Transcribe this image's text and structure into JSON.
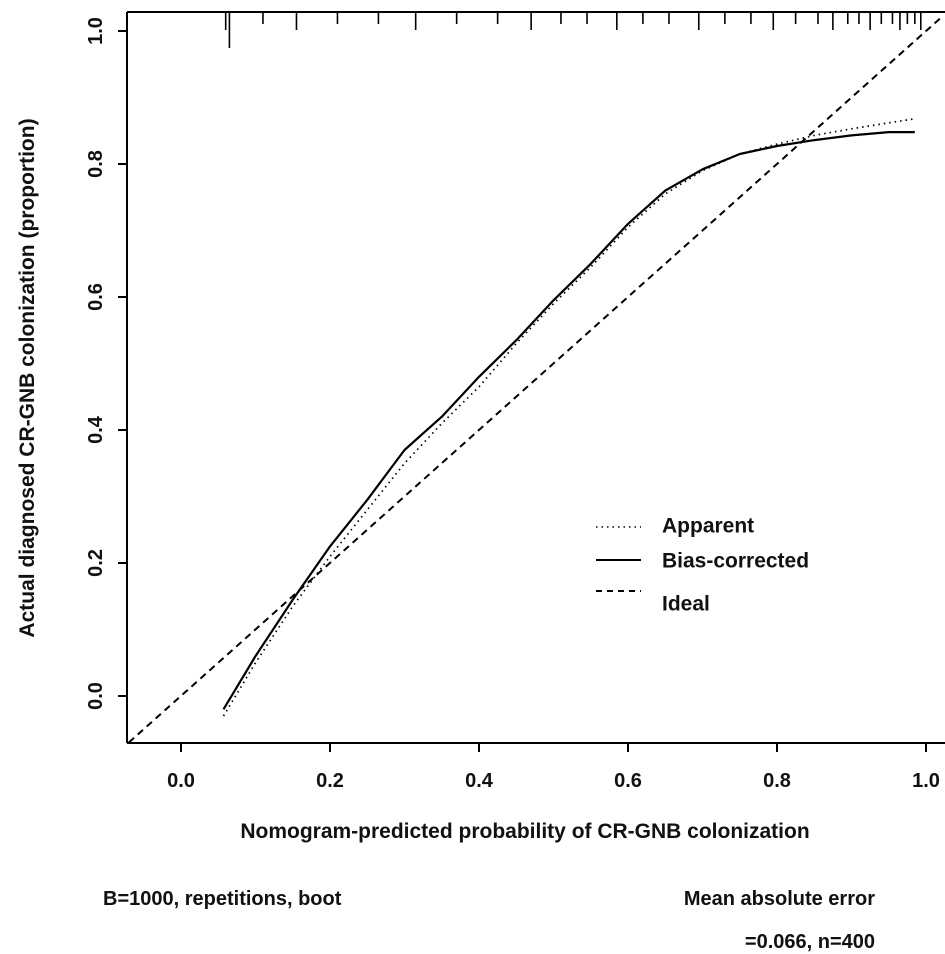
{
  "chart_data": {
    "type": "line",
    "xlabel": "Nomogram-predicted probability of CR-GNB colonization",
    "ylabel": "Actual diagnosed CR-GNB colonization (proportion)",
    "xlim": [
      -0.07,
      1.02
    ],
    "ylim": [
      -0.07,
      1.03
    ],
    "x_ticks": [
      "0.0",
      "0.2",
      "0.4",
      "0.6",
      "0.8",
      "1.0"
    ],
    "y_ticks": [
      "0.0",
      "0.2",
      "0.4",
      "0.6",
      "0.8",
      "1.0"
    ],
    "grid": false,
    "legend_position": "right",
    "series": [
      {
        "name": "Apparent",
        "style": "dotted",
        "x": [
          0.057,
          0.1,
          0.15,
          0.2,
          0.25,
          0.3,
          0.35,
          0.4,
          0.45,
          0.5,
          0.55,
          0.6,
          0.65,
          0.7,
          0.75,
          0.8,
          0.85,
          0.9,
          0.95,
          0.985
        ],
        "y": [
          -0.03,
          0.05,
          0.135,
          0.21,
          0.28,
          0.35,
          0.41,
          0.465,
          0.53,
          0.59,
          0.645,
          0.705,
          0.755,
          0.79,
          0.815,
          0.83,
          0.843,
          0.853,
          0.862,
          0.868
        ]
      },
      {
        "name": "Bias-corrected",
        "style": "solid",
        "x": [
          0.057,
          0.1,
          0.15,
          0.2,
          0.25,
          0.3,
          0.35,
          0.4,
          0.45,
          0.5,
          0.55,
          0.6,
          0.65,
          0.7,
          0.75,
          0.8,
          0.85,
          0.9,
          0.95,
          0.985
        ],
        "y": [
          -0.02,
          0.06,
          0.145,
          0.225,
          0.295,
          0.37,
          0.42,
          0.48,
          0.535,
          0.595,
          0.65,
          0.71,
          0.76,
          0.792,
          0.815,
          0.827,
          0.836,
          0.843,
          0.848,
          0.848
        ]
      },
      {
        "name": "Ideal",
        "style": "dashed",
        "x": [
          -0.07,
          1.02
        ],
        "y": [
          -0.07,
          1.02
        ]
      }
    ],
    "rug_x": [
      0.06,
      0.065,
      0.11,
      0.155,
      0.21,
      0.265,
      0.315,
      0.37,
      0.425,
      0.47,
      0.51,
      0.545,
      0.585,
      0.62,
      0.655,
      0.695,
      0.73,
      0.765,
      0.795,
      0.825,
      0.855,
      0.875,
      0.895,
      0.91,
      0.925,
      0.94,
      0.955,
      0.965,
      0.975,
      0.985,
      0.993
    ]
  },
  "footer": {
    "left": "B=1000, repetitions, boot",
    "right_line1": "Mean absolute error",
    "right_line2": "=0.066, n=400"
  }
}
